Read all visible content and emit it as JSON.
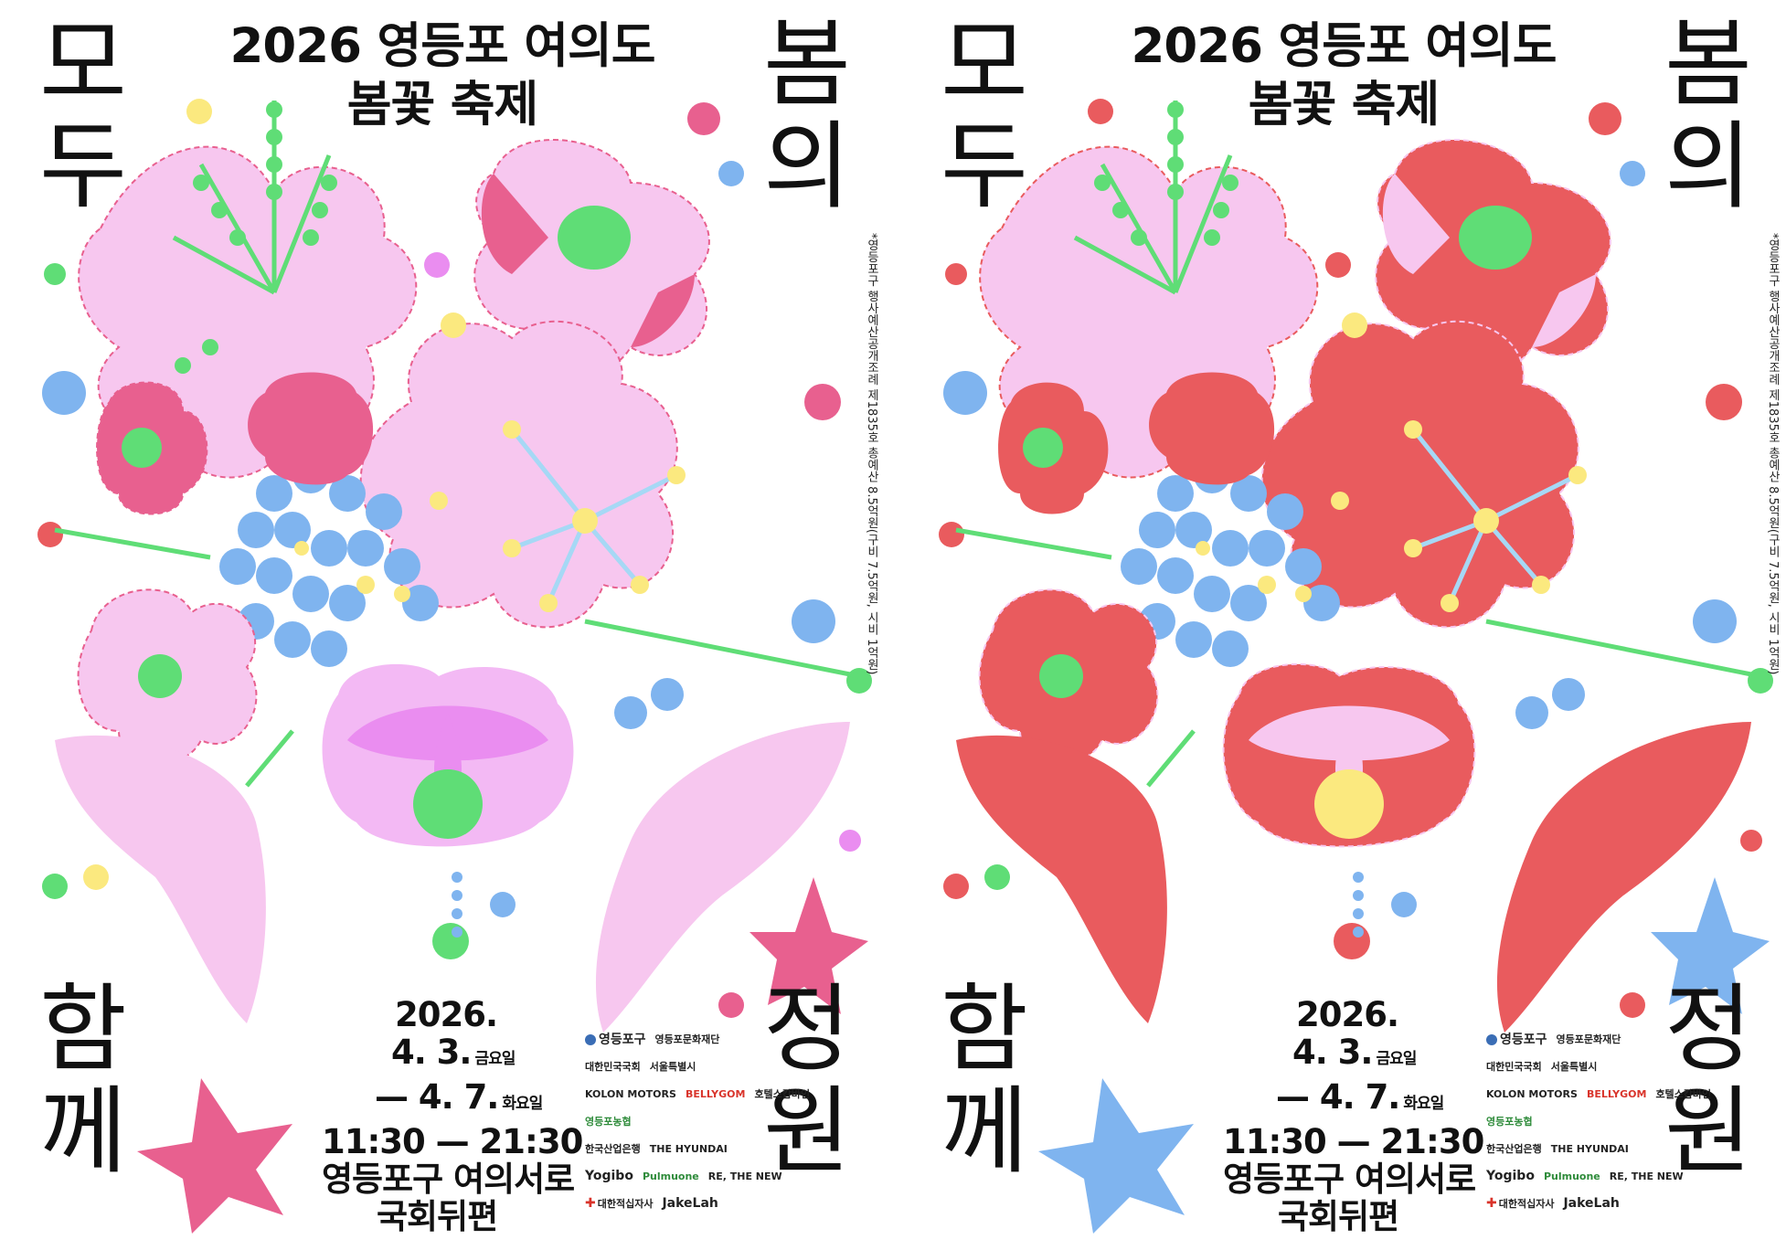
{
  "posters": [
    {
      "variant": "pink",
      "title_line1": "2026 영등포 여의도",
      "title_line2": "봄꽃 축제",
      "corner_tl": [
        "모",
        "두"
      ],
      "corner_tr": [
        "봄",
        "의"
      ],
      "corner_bl": [
        "함",
        "께"
      ],
      "corner_br": [
        "정",
        "원"
      ],
      "side_note": "*영등포구 행사예산공개조례 제1835호 총예산 8.5억원(구비 7.5억원, 시비 1억원)",
      "date_year": "2026.",
      "date_start": "4. 3.",
      "date_start_day": "금요일",
      "date_end": "— 4. 7.",
      "date_end_day": "화요일",
      "time": "11:30 — 21:30",
      "place_line1": "영등포구 여의서로",
      "place_line2": "국회뒤편",
      "colors": {
        "petal": "#f7c7ef",
        "accent": "#e8608f",
        "blue": "#7fb4ef",
        "green": "#5fdd76",
        "yellow": "#fbe97f",
        "violet": "#ea8df0"
      }
    },
    {
      "variant": "red",
      "title_line1": "2026 영등포 여의도",
      "title_line2": "봄꽃 축제",
      "corner_tl": [
        "모",
        "두"
      ],
      "corner_tr": [
        "봄",
        "의"
      ],
      "corner_bl": [
        "함",
        "께"
      ],
      "corner_br": [
        "정",
        "원"
      ],
      "side_note": "*영등포구 행사예산공개조례 제1835호 총예산 8.5억원(구비 7.5억원, 시비 1억원)",
      "date_year": "2026.",
      "date_start": "4. 3.",
      "date_start_day": "금요일",
      "date_end": "— 4. 7.",
      "date_end_day": "화요일",
      "time": "11:30 — 21:30",
      "place_line1": "영등포구 여의서로",
      "place_line2": "국회뒤편",
      "colors": {
        "petal": "#e95b5e",
        "accent": "#f7c7ef",
        "blue": "#7fb4ef",
        "green": "#5fdd76",
        "yellow": "#fbe97f",
        "violet": "#f7c7ef"
      }
    }
  ],
  "sponsors": {
    "row1": [
      "영등포구",
      "영등포문화재단"
    ],
    "row2": [
      "대한민국국회",
      "서울특별시"
    ],
    "row3": [
      "KOLON MOTORS",
      "BELLYGOM",
      "호텔스캅바인"
    ],
    "row4": [
      "영등포농협"
    ],
    "row5": [
      "한국산업은행",
      "THE HYUNDAI"
    ],
    "row6": [
      "Yogibo",
      "Pulmuone",
      "RE, THE NEW"
    ],
    "row7": [
      "대한적십자사",
      "JakeLah"
    ]
  }
}
